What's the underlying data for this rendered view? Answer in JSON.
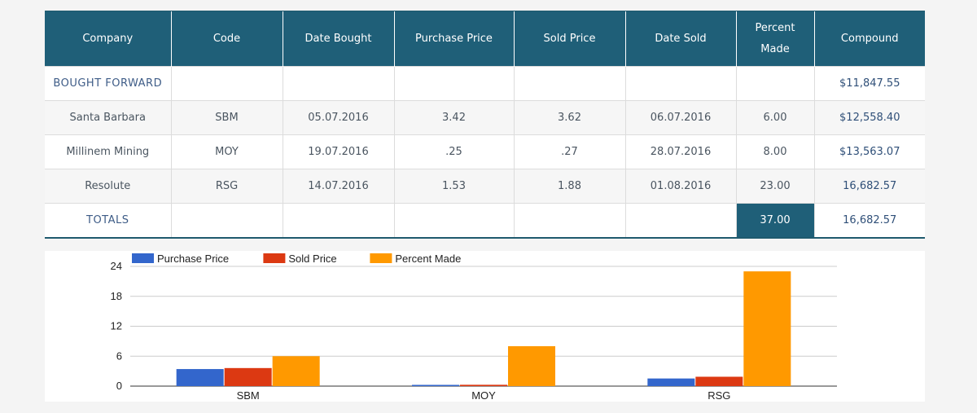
{
  "table": {
    "headers": [
      "Company",
      "Code",
      "Date Bought",
      "Purchase Price",
      "Sold Price",
      "Date Sold",
      "Percent Made",
      "Compound"
    ],
    "rows": [
      {
        "company": "BOUGHT FORWARD",
        "code": "",
        "date_bought": "",
        "purchase_price": "",
        "sold_price": "",
        "date_sold": "",
        "percent_made": "",
        "compound": "$11,847.55"
      },
      {
        "company": "Santa Barbara",
        "code": "SBM",
        "date_bought": "05.07.2016",
        "purchase_price": "3.42",
        "sold_price": "3.62",
        "date_sold": "06.07.2016",
        "percent_made": "6.00",
        "compound": "$12,558.40"
      },
      {
        "company": "Millinem Mining",
        "code": "MOY",
        "date_bought": "19.07.2016",
        "purchase_price": ".25",
        "sold_price": ".27",
        "date_sold": "28.07.2016",
        "percent_made": "8.00",
        "compound": "$13,563.07"
      },
      {
        "company": "Resolute",
        "code": "RSG",
        "date_bought": "14.07.2016",
        "purchase_price": "1.53",
        "sold_price": "1.88",
        "date_sold": "01.08.2016",
        "percent_made": "23.00",
        "compound": "16,682.57"
      },
      {
        "company": "TOTALS",
        "code": "",
        "date_bought": "",
        "purchase_price": "",
        "sold_price": "",
        "date_sold": "",
        "percent_made": "37.00",
        "compound": "16,682.57"
      }
    ]
  },
  "chart_data": {
    "type": "bar",
    "title": "",
    "xlabel": "",
    "ylabel": "",
    "categories": [
      "SBM",
      "MOY",
      "RSG"
    ],
    "series": [
      {
        "name": "Purchase Price",
        "values": [
          3.42,
          0.25,
          1.53
        ],
        "color": "#3366cc"
      },
      {
        "name": "Sold Price",
        "values": [
          3.62,
          0.27,
          1.88
        ],
        "color": "#dc3912"
      },
      {
        "name": "Percent Made",
        "values": [
          6.0,
          8.0,
          23.0
        ],
        "color": "#ff9900"
      }
    ],
    "ylim": [
      0,
      24
    ],
    "yticks": [
      "0",
      "6",
      "12",
      "18",
      "24"
    ],
    "legend_position": "top-left",
    "grid": true
  }
}
